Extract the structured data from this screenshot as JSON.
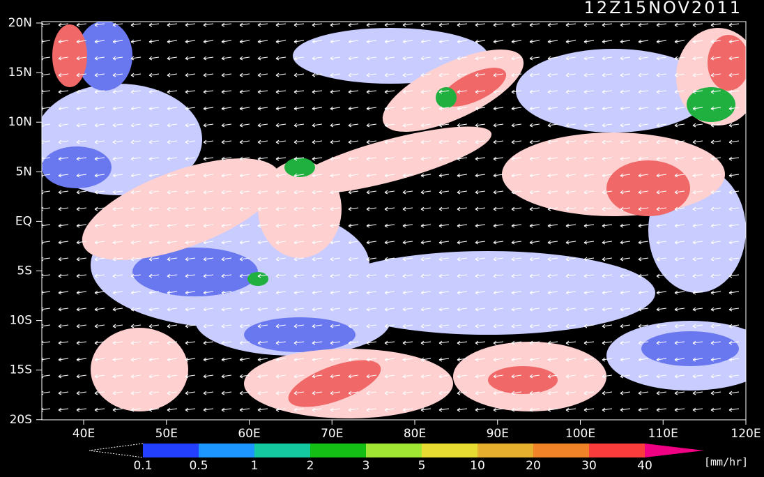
{
  "header": {
    "title": "12Z15NOV2011"
  },
  "map": {
    "lat_labels": [
      "20N",
      "15N",
      "10N",
      "5N",
      "EQ",
      "5S",
      "10S",
      "15S",
      "20S"
    ],
    "lon_labels": [
      "40E",
      "50E",
      "60E",
      "70E",
      "80E",
      "90E",
      "100E",
      "110E",
      "120E"
    ]
  },
  "colorbar": {
    "labels": [
      "0.1",
      "0.5",
      "1",
      "2",
      "3",
      "5",
      "10",
      "20",
      "30",
      "40"
    ],
    "colors": [
      "#2440ff",
      "#1e96ff",
      "#14c8a0",
      "#14be14",
      "#a0e632",
      "#e6dc32",
      "#e6af2d",
      "#f08228",
      "#fa3c3c",
      "#f00082"
    ],
    "unit": "[mm/hr]"
  }
}
